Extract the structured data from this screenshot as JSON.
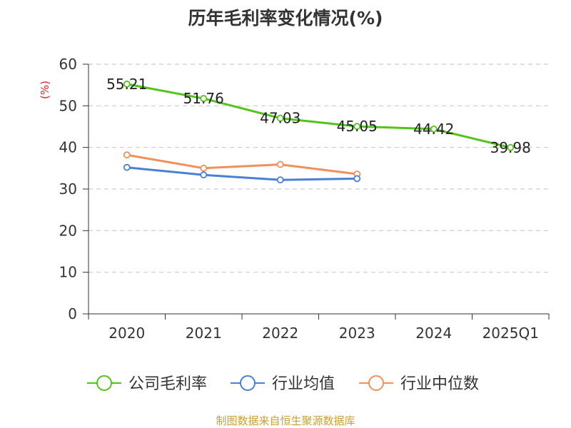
{
  "chart_data": {
    "type": "line",
    "title": "历年毛利率变化情况(%)",
    "ylabel": "(%)",
    "xlabel": "",
    "categories": [
      "2020",
      "2021",
      "2022",
      "2023",
      "2024",
      "2025Q1"
    ],
    "ylim": [
      0,
      60
    ],
    "yticks": [
      0,
      10,
      20,
      30,
      40,
      50,
      60
    ],
    "grid": true,
    "legend_position": "bottom",
    "series": [
      {
        "name": "公司毛利率",
        "color": "#52c41a",
        "values": [
          55.21,
          51.76,
          47.03,
          45.05,
          44.42,
          39.98
        ],
        "data_labels": [
          "55.21",
          "51.76",
          "47.03",
          "45.05",
          "44.42",
          "39.98"
        ]
      },
      {
        "name": "行业均值",
        "color": "#4a7fd9",
        "values": [
          35.2,
          33.4,
          32.2,
          32.5,
          null,
          null
        ]
      },
      {
        "name": "行业中位数",
        "color": "#f0905a",
        "values": [
          38.2,
          35.0,
          35.9,
          33.6,
          null,
          null
        ]
      }
    ]
  },
  "source": "制图数据来自恒生聚源数据库"
}
